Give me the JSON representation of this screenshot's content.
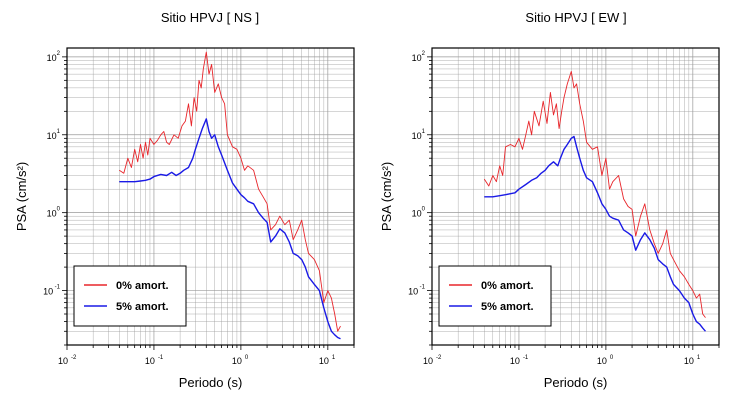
{
  "chart_data": [
    {
      "type": "line",
      "title": "Sitio HPVJ [ NS ]",
      "xlabel": "Periodo (s)",
      "ylabel": "PSA (cm/s²)",
      "x_scale": "log",
      "y_scale": "log",
      "xlim": [
        0.01,
        20
      ],
      "ylim": [
        0.02,
        130
      ],
      "x_ticks": [
        {
          "base": "10",
          "exp": "-2"
        },
        {
          "base": "10",
          "exp": "-1"
        },
        {
          "base": "10",
          "exp": "0"
        },
        {
          "base": "10",
          "exp": "1"
        }
      ],
      "y_ticks": [
        {
          "base": "10",
          "exp": "-1"
        },
        {
          "base": "10",
          "exp": "0"
        },
        {
          "base": "10",
          "exp": "1"
        },
        {
          "base": "10",
          "exp": "2"
        }
      ],
      "grid": true,
      "legend_position": "bottom-left",
      "series": [
        {
          "name": "0% amort.",
          "color": "#e8262b",
          "points": [
            [
              0.04,
              3.5
            ],
            [
              0.045,
              3.2
            ],
            [
              0.05,
              5.0
            ],
            [
              0.055,
              3.8
            ],
            [
              0.06,
              6.5
            ],
            [
              0.065,
              4.5
            ],
            [
              0.07,
              7.5
            ],
            [
              0.075,
              5.0
            ],
            [
              0.08,
              8.0
            ],
            [
              0.085,
              5.5
            ],
            [
              0.09,
              9.0
            ],
            [
              0.1,
              7.5
            ],
            [
              0.11,
              8.5
            ],
            [
              0.12,
              10.0
            ],
            [
              0.13,
              11.0
            ],
            [
              0.14,
              8.0
            ],
            [
              0.15,
              7.5
            ],
            [
              0.17,
              10.0
            ],
            [
              0.19,
              9.0
            ],
            [
              0.21,
              13.0
            ],
            [
              0.23,
              15.0
            ],
            [
              0.25,
              25.0
            ],
            [
              0.27,
              13.0
            ],
            [
              0.29,
              30.0
            ],
            [
              0.31,
              20.0
            ],
            [
              0.33,
              50.0
            ],
            [
              0.35,
              40.0
            ],
            [
              0.37,
              70.0
            ],
            [
              0.4,
              115.0
            ],
            [
              0.43,
              60.0
            ],
            [
              0.46,
              80.0
            ],
            [
              0.5,
              35.0
            ],
            [
              0.55,
              45.0
            ],
            [
              0.6,
              30.0
            ],
            [
              0.65,
              25.0
            ],
            [
              0.7,
              10.0
            ],
            [
              0.8,
              7.0
            ],
            [
              0.9,
              6.5
            ],
            [
              1.0,
              5.0
            ],
            [
              1.1,
              3.5
            ],
            [
              1.2,
              4.0
            ],
            [
              1.4,
              3.5
            ],
            [
              1.6,
              2.0
            ],
            [
              1.8,
              1.6
            ],
            [
              2.0,
              1.3
            ],
            [
              2.2,
              0.6
            ],
            [
              2.5,
              0.7
            ],
            [
              2.8,
              0.9
            ],
            [
              3.2,
              0.7
            ],
            [
              3.6,
              0.8
            ],
            [
              4.0,
              0.45
            ],
            [
              4.5,
              0.6
            ],
            [
              5.0,
              0.8
            ],
            [
              5.5,
              0.45
            ],
            [
              6.0,
              0.3
            ],
            [
              7.0,
              0.25
            ],
            [
              8.0,
              0.18
            ],
            [
              9.0,
              0.07
            ],
            [
              10.0,
              0.1
            ],
            [
              11.0,
              0.08
            ],
            [
              12.0,
              0.05
            ],
            [
              13.0,
              0.03
            ],
            [
              14.0,
              0.035
            ]
          ]
        },
        {
          "name": "5% amort.",
          "color": "#1a1ae6",
          "points": [
            [
              0.04,
              2.5
            ],
            [
              0.05,
              2.5
            ],
            [
              0.06,
              2.5
            ],
            [
              0.07,
              2.55
            ],
            [
              0.08,
              2.6
            ],
            [
              0.09,
              2.7
            ],
            [
              0.1,
              2.9
            ],
            [
              0.12,
              3.1
            ],
            [
              0.14,
              3.0
            ],
            [
              0.16,
              3.3
            ],
            [
              0.18,
              3.0
            ],
            [
              0.2,
              3.2
            ],
            [
              0.22,
              3.5
            ],
            [
              0.25,
              3.8
            ],
            [
              0.28,
              5.0
            ],
            [
              0.3,
              6.5
            ],
            [
              0.33,
              9.0
            ],
            [
              0.36,
              12.0
            ],
            [
              0.4,
              16.0
            ],
            [
              0.43,
              11.0
            ],
            [
              0.46,
              9.0
            ],
            [
              0.5,
              10.0
            ],
            [
              0.55,
              7.0
            ],
            [
              0.6,
              5.5
            ],
            [
              0.7,
              3.5
            ],
            [
              0.8,
              2.4
            ],
            [
              0.9,
              2.0
            ],
            [
              1.0,
              1.7
            ],
            [
              1.1,
              1.55
            ],
            [
              1.2,
              1.4
            ],
            [
              1.4,
              1.3
            ],
            [
              1.6,
              1.0
            ],
            [
              1.8,
              0.85
            ],
            [
              2.0,
              0.75
            ],
            [
              2.2,
              0.42
            ],
            [
              2.5,
              0.5
            ],
            [
              2.8,
              0.62
            ],
            [
              3.2,
              0.55
            ],
            [
              3.6,
              0.42
            ],
            [
              4.0,
              0.3
            ],
            [
              4.5,
              0.28
            ],
            [
              5.0,
              0.25
            ],
            [
              5.5,
              0.2
            ],
            [
              6.0,
              0.15
            ],
            [
              7.0,
              0.12
            ],
            [
              8.0,
              0.1
            ],
            [
              9.0,
              0.06
            ],
            [
              10.0,
              0.04
            ],
            [
              11.0,
              0.03
            ],
            [
              12.0,
              0.027
            ],
            [
              13.0,
              0.025
            ],
            [
              14.0,
              0.024
            ]
          ]
        }
      ]
    },
    {
      "type": "line",
      "title": "Sitio HPVJ [ EW ]",
      "xlabel": "Periodo (s)",
      "ylabel": "PSA (cm/s²)",
      "x_scale": "log",
      "y_scale": "log",
      "xlim": [
        0.01,
        20
      ],
      "ylim": [
        0.02,
        130
      ],
      "x_ticks": [
        {
          "base": "10",
          "exp": "-2"
        },
        {
          "base": "10",
          "exp": "-1"
        },
        {
          "base": "10",
          "exp": "0"
        },
        {
          "base": "10",
          "exp": "1"
        }
      ],
      "y_ticks": [
        {
          "base": "10",
          "exp": "-1"
        },
        {
          "base": "10",
          "exp": "0"
        },
        {
          "base": "10",
          "exp": "1"
        },
        {
          "base": "10",
          "exp": "2"
        }
      ],
      "grid": true,
      "legend_position": "bottom-left",
      "series": [
        {
          "name": "0% amort.",
          "color": "#e8262b",
          "points": [
            [
              0.04,
              2.7
            ],
            [
              0.045,
              2.2
            ],
            [
              0.05,
              3.0
            ],
            [
              0.055,
              2.5
            ],
            [
              0.06,
              4.0
            ],
            [
              0.065,
              3.0
            ],
            [
              0.07,
              7.0
            ],
            [
              0.08,
              7.5
            ],
            [
              0.09,
              7.0
            ],
            [
              0.1,
              9.0
            ],
            [
              0.11,
              6.5
            ],
            [
              0.12,
              10.0
            ],
            [
              0.13,
              15.0
            ],
            [
              0.14,
              10.0
            ],
            [
              0.15,
              20.0
            ],
            [
              0.17,
              13.0
            ],
            [
              0.19,
              27.0
            ],
            [
              0.21,
              14.0
            ],
            [
              0.23,
              35.0
            ],
            [
              0.25,
              18.0
            ],
            [
              0.27,
              25.0
            ],
            [
              0.29,
              12.0
            ],
            [
              0.31,
              20.0
            ],
            [
              0.33,
              30.0
            ],
            [
              0.36,
              45.0
            ],
            [
              0.4,
              65.0
            ],
            [
              0.43,
              40.0
            ],
            [
              0.46,
              45.0
            ],
            [
              0.5,
              25.0
            ],
            [
              0.55,
              15.0
            ],
            [
              0.6,
              8.0
            ],
            [
              0.7,
              6.5
            ],
            [
              0.8,
              7.0
            ],
            [
              0.9,
              3.0
            ],
            [
              1.0,
              5.0
            ],
            [
              1.1,
              2.0
            ],
            [
              1.2,
              2.5
            ],
            [
              1.4,
              3.0
            ],
            [
              1.6,
              1.5
            ],
            [
              1.8,
              1.2
            ],
            [
              2.0,
              1.1
            ],
            [
              2.2,
              0.5
            ],
            [
              2.5,
              0.9
            ],
            [
              2.8,
              1.3
            ],
            [
              3.2,
              0.6
            ],
            [
              3.6,
              0.4
            ],
            [
              4.0,
              0.3
            ],
            [
              4.5,
              0.4
            ],
            [
              5.0,
              0.6
            ],
            [
              5.5,
              0.3
            ],
            [
              6.0,
              0.25
            ],
            [
              7.0,
              0.18
            ],
            [
              8.0,
              0.15
            ],
            [
              9.0,
              0.12
            ],
            [
              10.0,
              0.1
            ],
            [
              11.0,
              0.08
            ],
            [
              12.0,
              0.09
            ],
            [
              13.0,
              0.05
            ],
            [
              14.0,
              0.045
            ]
          ]
        },
        {
          "name": "5% amort.",
          "color": "#1a1ae6",
          "points": [
            [
              0.04,
              1.6
            ],
            [
              0.05,
              1.6
            ],
            [
              0.06,
              1.65
            ],
            [
              0.07,
              1.7
            ],
            [
              0.08,
              1.75
            ],
            [
              0.09,
              1.8
            ],
            [
              0.1,
              2.0
            ],
            [
              0.12,
              2.3
            ],
            [
              0.14,
              2.6
            ],
            [
              0.16,
              2.8
            ],
            [
              0.18,
              3.2
            ],
            [
              0.2,
              3.5
            ],
            [
              0.22,
              4.0
            ],
            [
              0.25,
              4.5
            ],
            [
              0.28,
              4.0
            ],
            [
              0.3,
              5.0
            ],
            [
              0.33,
              6.5
            ],
            [
              0.36,
              7.5
            ],
            [
              0.4,
              9.0
            ],
            [
              0.43,
              9.5
            ],
            [
              0.46,
              7.0
            ],
            [
              0.5,
              5.0
            ],
            [
              0.55,
              3.5
            ],
            [
              0.6,
              2.8
            ],
            [
              0.7,
              2.5
            ],
            [
              0.8,
              1.8
            ],
            [
              0.9,
              1.3
            ],
            [
              1.0,
              1.1
            ],
            [
              1.1,
              0.9
            ],
            [
              1.2,
              0.85
            ],
            [
              1.4,
              0.8
            ],
            [
              1.6,
              0.6
            ],
            [
              1.8,
              0.55
            ],
            [
              2.0,
              0.5
            ],
            [
              2.2,
              0.33
            ],
            [
              2.5,
              0.45
            ],
            [
              2.8,
              0.55
            ],
            [
              3.2,
              0.45
            ],
            [
              3.6,
              0.35
            ],
            [
              4.0,
              0.25
            ],
            [
              4.5,
              0.22
            ],
            [
              5.0,
              0.2
            ],
            [
              5.5,
              0.15
            ],
            [
              6.0,
              0.12
            ],
            [
              7.0,
              0.1
            ],
            [
              8.0,
              0.08
            ],
            [
              9.0,
              0.07
            ],
            [
              10.0,
              0.05
            ],
            [
              11.0,
              0.04
            ],
            [
              12.0,
              0.037
            ],
            [
              13.0,
              0.033
            ],
            [
              14.0,
              0.03
            ]
          ]
        }
      ]
    }
  ]
}
